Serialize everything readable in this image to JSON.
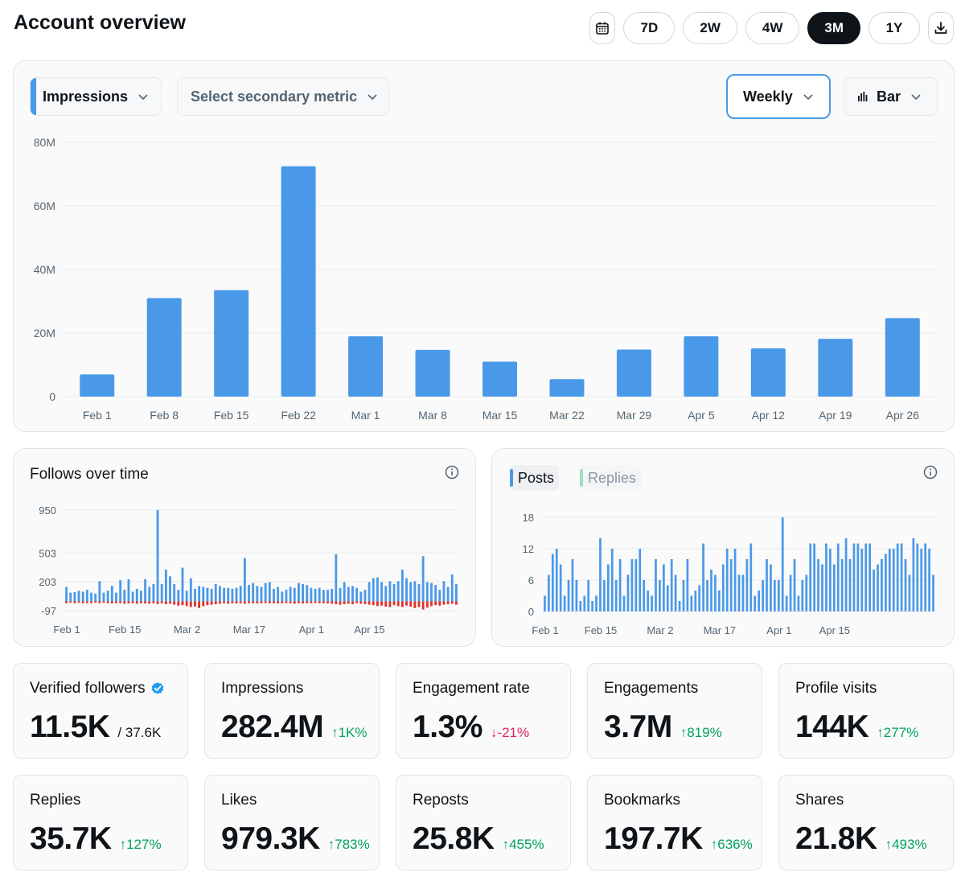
{
  "page": {
    "title": "Account overview"
  },
  "range": {
    "options": [
      "7D",
      "2W",
      "4W",
      "3M",
      "1Y"
    ],
    "active": "3M"
  },
  "main_chart": {
    "primary_metric": "Impressions",
    "secondary_placeholder": "Select secondary metric",
    "interval": "Weekly",
    "chart_type_label": "Bar"
  },
  "follows": {
    "title": "Follows over time"
  },
  "posts": {
    "tab_posts": "Posts",
    "tab_replies": "Replies"
  },
  "metrics": [
    {
      "label": "Verified followers",
      "value": "11.5K",
      "of": "/ 37.6K",
      "verified": true
    },
    {
      "label": "Impressions",
      "value": "282.4M",
      "delta": "1K%",
      "dir": "up"
    },
    {
      "label": "Engagement rate",
      "value": "1.3%",
      "delta": "-21%",
      "dir": "down"
    },
    {
      "label": "Engagements",
      "value": "3.7M",
      "delta": "819%",
      "dir": "up"
    },
    {
      "label": "Profile visits",
      "value": "144K",
      "delta": "277%",
      "dir": "up"
    },
    {
      "label": "Replies",
      "value": "35.7K",
      "delta": "127%",
      "dir": "up"
    },
    {
      "label": "Likes",
      "value": "979.3K",
      "delta": "783%",
      "dir": "up"
    },
    {
      "label": "Reposts",
      "value": "25.8K",
      "delta": "455%",
      "dir": "up"
    },
    {
      "label": "Bookmarks",
      "value": "197.7K",
      "delta": "636%",
      "dir": "up"
    },
    {
      "label": "Shares",
      "value": "21.8K",
      "delta": "493%",
      "dir": "up"
    }
  ],
  "colors": {
    "bar": "#4a99e9",
    "negative": "#e0312b",
    "up": "#00a25a",
    "down": "#e0245e",
    "grid": "#e8ebed"
  },
  "chart_data": [
    {
      "type": "bar",
      "categories": [
        "Feb 1",
        "Feb 8",
        "Feb 15",
        "Feb 22",
        "Mar 1",
        "Mar 8",
        "Mar 15",
        "Mar 22",
        "Mar 29",
        "Apr 5",
        "Apr 12",
        "Apr 19",
        "Apr 26"
      ],
      "values": [
        7000000,
        31000000,
        33500000,
        72500000,
        19000000,
        14700000,
        11000000,
        5500000,
        14800000,
        19000000,
        15200000,
        18200000,
        24700000
      ],
      "yticks": [
        "80M",
        "60M",
        "40M",
        "20M",
        "0"
      ],
      "ytick_values": [
        80000000,
        60000000,
        40000000,
        20000000,
        0
      ],
      "ylim": [
        0,
        80000000
      ],
      "grid": true
    },
    {
      "type": "bar",
      "title": "Follows over time",
      "x_ticks": [
        "Feb 1",
        "Feb 15",
        "Mar 2",
        "Mar 17",
        "Apr 1",
        "Apr 15"
      ],
      "x_tick_positions": [
        0,
        14,
        29,
        44,
        59,
        73
      ],
      "yticks": [
        "950",
        "503",
        "203",
        "-97"
      ],
      "ytick_values": [
        950,
        503,
        203,
        -97
      ],
      "ylim": [
        -97,
        950
      ],
      "grid": true,
      "series": [
        {
          "values": [
            150,
            90,
            95,
            110,
            100,
            120,
            90,
            80,
            210,
            90,
            110,
            160,
            90,
            220,
            120,
            230,
            100,
            130,
            110,
            230,
            150,
            180,
            950,
            180,
            330,
            260,
            180,
            120,
            350,
            110,
            240,
            130,
            160,
            150,
            140,
            130,
            180,
            160,
            140,
            140,
            130,
            140,
            160,
            450,
            170,
            190,
            160,
            150,
            190,
            200,
            130,
            150,
            100,
            120,
            150,
            140,
            190,
            180,
            170,
            140,
            130,
            140,
            120,
            120,
            130,
            490,
            140,
            200,
            150,
            160,
            140,
            100,
            120,
            200,
            240,
            250,
            200,
            160,
            210,
            180,
            210,
            330,
            240,
            200,
            210,
            180,
            470,
            200,
            190,
            170,
            120,
            210,
            150,
            280,
            180
          ]
        },
        {
          "values": [
            -20,
            -15,
            -20,
            -15,
            -20,
            -18,
            -20,
            -15,
            -20,
            -15,
            -20,
            -22,
            -20,
            -18,
            -25,
            -22,
            -20,
            -25,
            -20,
            -22,
            -25,
            -20,
            -28,
            -22,
            -30,
            -25,
            -35,
            -45,
            -40,
            -50,
            -60,
            -55,
            -70,
            -50,
            -40,
            -35,
            -30,
            -25,
            -20,
            -25,
            -20,
            -22,
            -20,
            -25,
            -20,
            -20,
            -22,
            -20,
            -18,
            -20,
            -20,
            -22,
            -20,
            -18,
            -20,
            -25,
            -20,
            -22,
            -20,
            -20,
            -18,
            -20,
            -20,
            -22,
            -25,
            -30,
            -35,
            -30,
            -25,
            -30,
            -20,
            -25,
            -30,
            -35,
            -40,
            -50,
            -45,
            -55,
            -60,
            -40,
            -50,
            -60,
            -45,
            -55,
            -70,
            -60,
            -85,
            -65,
            -50,
            -40,
            -45,
            -35,
            -30,
            -25,
            -35
          ]
        }
      ]
    },
    {
      "type": "bar",
      "x_ticks": [
        "Feb 1",
        "Feb 15",
        "Mar 2",
        "Mar 17",
        "Apr 1",
        "Apr 15"
      ],
      "x_tick_positions": [
        0,
        14,
        29,
        44,
        59,
        73
      ],
      "yticks": [
        "18",
        "12",
        "6",
        "0"
      ],
      "ytick_values": [
        18,
        12,
        6,
        0
      ],
      "ylim": [
        0,
        18
      ],
      "grid": true,
      "series": [
        {
          "name": "Posts",
          "values": [
            3,
            7,
            11,
            12,
            9,
            3,
            6,
            10,
            6,
            2,
            3,
            6,
            2,
            3,
            14,
            6,
            9,
            12,
            6,
            10,
            3,
            7,
            10,
            10,
            12,
            6,
            4,
            3,
            10,
            6,
            9,
            5,
            10,
            7,
            2,
            6,
            10,
            3,
            4,
            5,
            13,
            6,
            8,
            7,
            4,
            9,
            12,
            10,
            12,
            7,
            7,
            10,
            13,
            3,
            4,
            6,
            10,
            9,
            6,
            6,
            18,
            3,
            7,
            10,
            3,
            6,
            7,
            13,
            13,
            10,
            9,
            13,
            12,
            9,
            13,
            10,
            14,
            10,
            13,
            13,
            12,
            13,
            13,
            8,
            9,
            10,
            11,
            12,
            12,
            13,
            13,
            10,
            7,
            14,
            13,
            12,
            13,
            12,
            7
          ]
        },
        {
          "name": "Replies",
          "values": []
        }
      ]
    }
  ]
}
